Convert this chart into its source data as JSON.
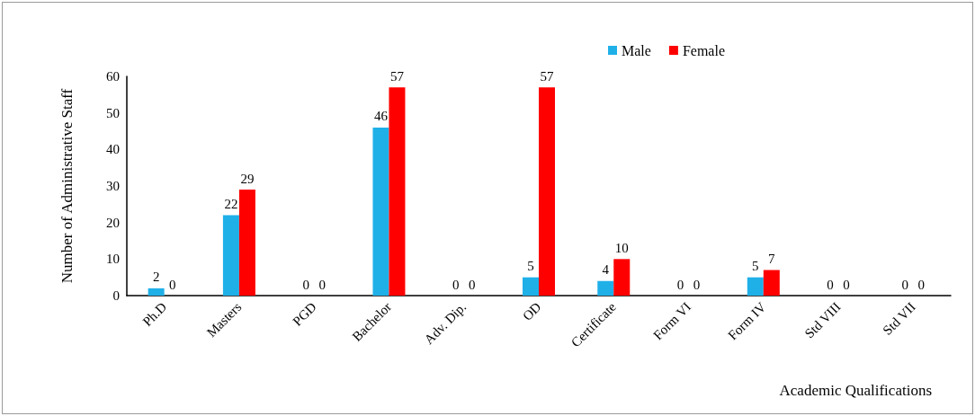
{
  "chart_data": {
    "type": "bar",
    "xlabel": "Academic Qualifications",
    "ylabel": "Number of Administrative Staff",
    "categories": [
      "Ph.D",
      "Masters",
      "PGD",
      "Bachelor",
      "Adv. Dip.",
      "OD",
      "Certificate",
      "Form VI",
      "Form IV",
      "Std VIII",
      "Std VII"
    ],
    "series": [
      {
        "name": "Male",
        "color": "#1fb0e8",
        "values": [
          2,
          22,
          0,
          46,
          0,
          5,
          4,
          0,
          5,
          0,
          0
        ]
      },
      {
        "name": "Female",
        "color": "#ff0000",
        "values": [
          0,
          29,
          0,
          57,
          0,
          57,
          10,
          0,
          7,
          0,
          0
        ]
      }
    ],
    "ylim": [
      0,
      60
    ],
    "yticks": [
      0,
      10,
      20,
      30,
      40,
      50,
      60
    ],
    "grid": false,
    "legend": "top right",
    "data_labels": true
  }
}
